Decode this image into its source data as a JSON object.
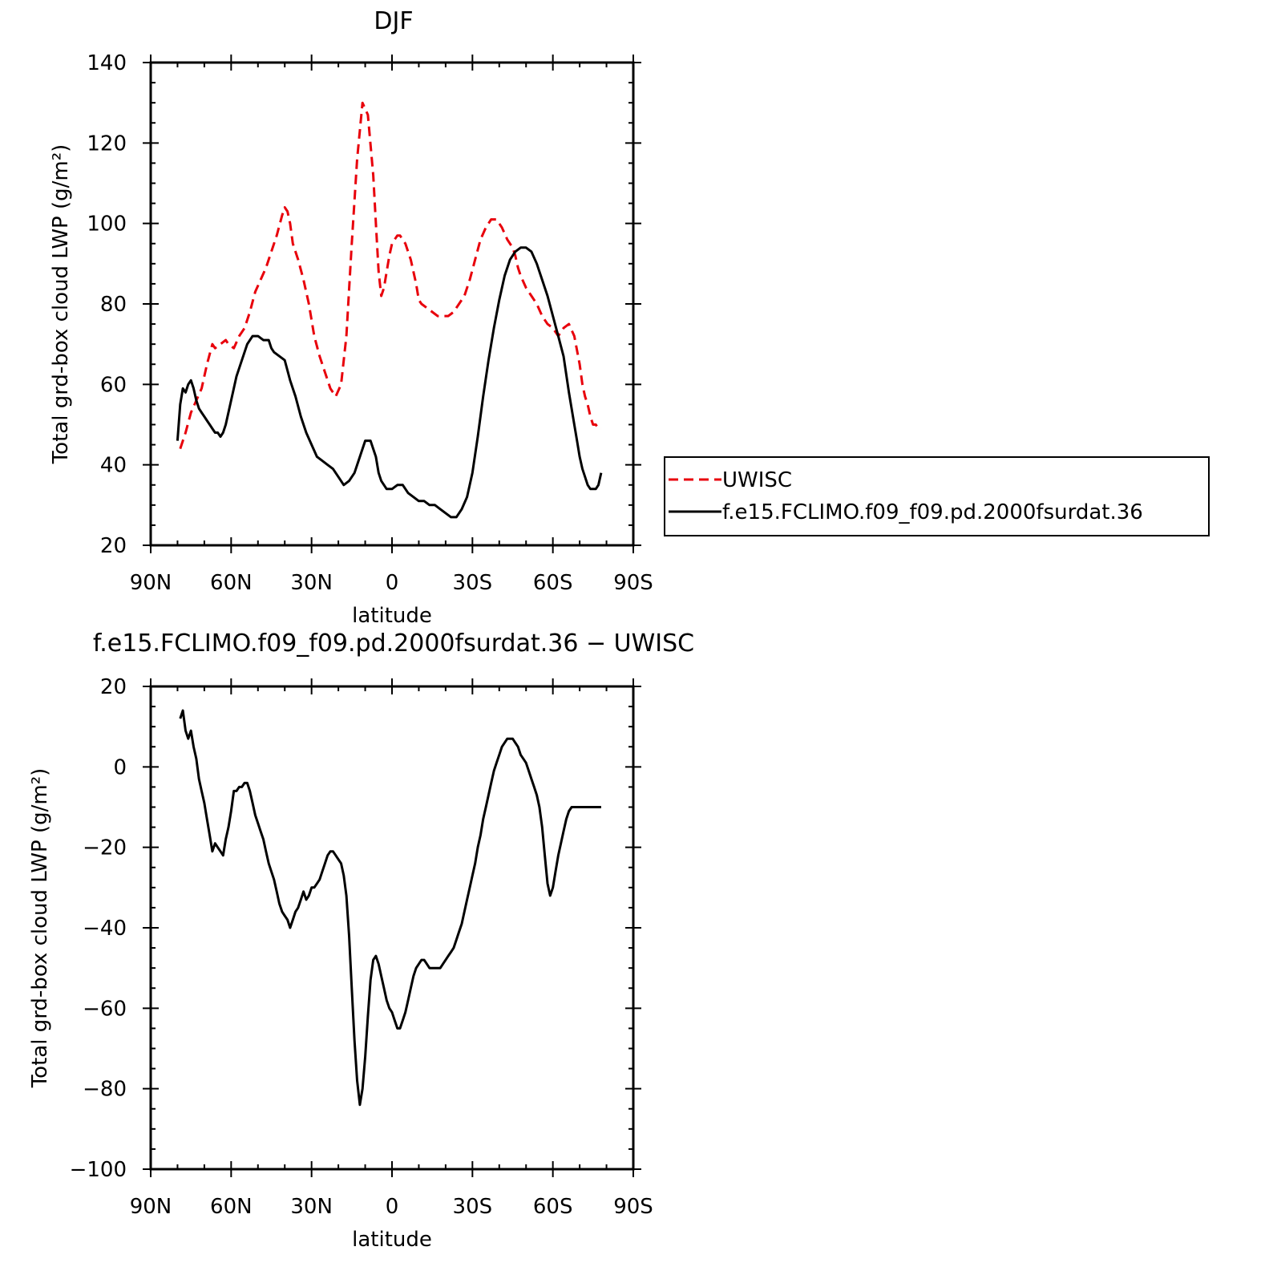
{
  "chart_data": [
    {
      "type": "line",
      "title": "DJF",
      "xlabel": "latitude",
      "ylabel": "Total grd-box cloud LWP (g/m²)",
      "xlim": [
        90,
        -90
      ],
      "ylim": [
        20,
        140
      ],
      "x_ticks": [
        90,
        60,
        30,
        0,
        -30,
        -60,
        -90
      ],
      "x_tick_labels": [
        "90N",
        "60N",
        "30N",
        "0",
        "30S",
        "60S",
        "90S"
      ],
      "y_ticks": [
        20,
        40,
        60,
        80,
        100,
        120,
        140
      ],
      "y_tick_labels": [
        "20",
        "40",
        "60",
        "80",
        "100",
        "120",
        "140"
      ],
      "legend_position": "right",
      "series": [
        {
          "name": "UWISC",
          "color": "#e8000b",
          "style": "dashed",
          "x": [
            79,
            77,
            75,
            73,
            71,
            69,
            67,
            66,
            64,
            62,
            61,
            59,
            57,
            55,
            53,
            51,
            49,
            47,
            45,
            43,
            41,
            40,
            39,
            38,
            37,
            35,
            33,
            31,
            29,
            27,
            25,
            23,
            21,
            19,
            17,
            15,
            13,
            11,
            9,
            7,
            6,
            5,
            4,
            3,
            2,
            1,
            0,
            -1,
            -2,
            -3,
            -5,
            -7,
            -9,
            -10,
            -11,
            -13,
            -15,
            -17,
            -19,
            -21,
            -23,
            -25,
            -27,
            -29,
            -31,
            -33,
            -35,
            -37,
            -39,
            -41,
            -43,
            -45,
            -46,
            -47,
            -48,
            -50,
            -52,
            -54,
            -56,
            -58,
            -60,
            -62,
            -64,
            -66,
            -68,
            -70,
            -71,
            -72,
            -73,
            -74,
            -75,
            -76,
            -77,
            -78
          ],
          "values": [
            44,
            48,
            53,
            56,
            59,
            65,
            70,
            69,
            70,
            71,
            70,
            69,
            72,
            74,
            78,
            83,
            86,
            89,
            93,
            97,
            102,
            104,
            103,
            100,
            95,
            91,
            86,
            80,
            72,
            67,
            63,
            59,
            57,
            60,
            72,
            95,
            116,
            130,
            127,
            112,
            100,
            88,
            82,
            84,
            88,
            92,
            95,
            96,
            97,
            97,
            95,
            91,
            85,
            81,
            80,
            79,
            78,
            77,
            77,
            77,
            78,
            80,
            82,
            86,
            91,
            96,
            99,
            101,
            101,
            99,
            96,
            94,
            92,
            89,
            87,
            84,
            82,
            80,
            77,
            75,
            74,
            72,
            74,
            75,
            72,
            65,
            60,
            57,
            55,
            52,
            50,
            50,
            49,
            49
          ],
          "note": ""
        },
        {
          "name": "f.e15.FCLIMO.f09_f09.pd.2000fsurdat.36",
          "color": "#000000",
          "style": "solid",
          "x": [
            80,
            79,
            78,
            77,
            76,
            75,
            74,
            73,
            72,
            71,
            70,
            69,
            68,
            67,
            66,
            65,
            64,
            63,
            62,
            60,
            58,
            56,
            54,
            52,
            50,
            48,
            46,
            45,
            44,
            42,
            40,
            38,
            36,
            34,
            32,
            30,
            28,
            26,
            24,
            22,
            20,
            18,
            16,
            14,
            12,
            10,
            8,
            6,
            5,
            4,
            2,
            0,
            -2,
            -4,
            -6,
            -8,
            -10,
            -12,
            -14,
            -16,
            -18,
            -20,
            -22,
            -24,
            -26,
            -28,
            -30,
            -32,
            -34,
            -36,
            -38,
            -40,
            -42,
            -44,
            -46,
            -48,
            -50,
            -52,
            -54,
            -56,
            -58,
            -60,
            -62,
            -64,
            -66,
            -68,
            -69,
            -70,
            -71,
            -72,
            -73,
            -74,
            -75,
            -76,
            -77,
            -78
          ],
          "values": [
            46,
            55,
            59,
            58,
            60,
            61,
            59,
            56,
            54,
            53,
            52,
            51,
            50,
            49,
            48,
            48,
            47,
            48,
            50,
            56,
            62,
            66,
            70,
            72,
            72,
            71,
            71,
            69,
            68,
            67,
            66,
            61,
            57,
            52,
            48,
            45,
            42,
            41,
            40,
            39,
            37,
            35,
            36,
            38,
            42,
            46,
            46,
            42,
            38,
            36,
            34,
            34,
            35,
            35,
            33,
            32,
            31,
            31,
            30,
            30,
            29,
            28,
            27,
            27,
            29,
            32,
            38,
            47,
            57,
            66,
            74,
            81,
            87,
            91,
            93,
            94,
            94,
            93,
            90,
            86,
            82,
            77,
            72,
            67,
            58,
            50,
            46,
            42,
            39,
            37,
            35,
            34,
            34,
            34,
            35,
            38
          ],
          "note": ""
        }
      ]
    },
    {
      "type": "line",
      "title": "f.e15.FCLIMO.f09_f09.pd.2000fsurdat.36 − UWISC",
      "xlabel": "latitude",
      "ylabel": "Total grd-box cloud LWP (g/m²)",
      "xlim": [
        90,
        -90
      ],
      "ylim": [
        -100,
        20
      ],
      "x_ticks": [
        90,
        60,
        30,
        0,
        -30,
        -60,
        -90
      ],
      "x_tick_labels": [
        "90N",
        "60N",
        "30N",
        "0",
        "30S",
        "60S",
        "90S"
      ],
      "y_ticks": [
        -100,
        -80,
        -60,
        -40,
        -20,
        0,
        20
      ],
      "y_tick_labels": [
        "−100",
        "−80",
        "−60",
        "−40",
        "−20",
        "0",
        "20"
      ],
      "series": [
        {
          "color": "#000000",
          "style": "solid",
          "x": [
            79,
            78,
            77,
            76,
            75,
            74,
            73,
            72,
            71,
            70,
            69,
            68,
            67,
            66,
            65,
            64,
            63,
            62,
            61,
            60,
            59,
            58,
            57,
            56,
            55,
            54,
            53,
            52,
            51,
            50,
            49,
            48,
            47,
            46,
            45,
            44,
            43,
            42,
            41,
            40,
            39,
            38,
            37,
            36,
            35,
            34,
            33,
            32,
            31,
            30,
            29,
            28,
            27,
            26,
            25,
            24,
            23,
            22,
            21,
            20,
            19,
            18,
            17,
            16,
            15,
            14,
            13,
            12,
            11,
            10,
            9,
            8,
            7,
            6,
            5,
            4,
            3,
            2,
            1,
            0,
            -1,
            -2,
            -3,
            -4,
            -5,
            -6,
            -7,
            -8,
            -9,
            -10,
            -11,
            -12,
            -13,
            -14,
            -15,
            -16,
            -17,
            -18,
            -19,
            -20,
            -21,
            -22,
            -23,
            -24,
            -25,
            -26,
            -27,
            -28,
            -29,
            -30,
            -31,
            -32,
            -33,
            -34,
            -35,
            -36,
            -37,
            -38,
            -39,
            -40,
            -41,
            -42,
            -43,
            -44,
            -45,
            -46,
            -47,
            -48,
            -49,
            -50,
            -51,
            -52,
            -53,
            -54,
            -55,
            -56,
            -57,
            -58,
            -59,
            -60,
            -61,
            -62,
            -63,
            -64,
            -65,
            -66,
            -67,
            -68,
            -69,
            -70,
            -71,
            -72,
            -73,
            -74,
            -75,
            -76,
            -77,
            -78
          ],
          "values": [
            12,
            14,
            9,
            7,
            9,
            5,
            2,
            -3,
            -6,
            -9,
            -13,
            -17,
            -21,
            -19,
            -20,
            -21,
            -22,
            -18,
            -15,
            -11,
            -6,
            -6,
            -5,
            -5,
            -4,
            -4,
            -6,
            -9,
            -12,
            -14,
            -16,
            -18,
            -21,
            -24,
            -26,
            -28,
            -31,
            -34,
            -36,
            -37,
            -38,
            -40,
            -38,
            -36,
            -35,
            -33,
            -31,
            -33,
            -32,
            -30,
            -30,
            -29,
            -28,
            -26,
            -24,
            -22,
            -21,
            -21,
            -22,
            -23,
            -24,
            -27,
            -32,
            -42,
            -55,
            -68,
            -78,
            -84,
            -80,
            -72,
            -62,
            -53,
            -48,
            -47,
            -49,
            -52,
            -55,
            -58,
            -60,
            -61,
            -63,
            -65,
            -65,
            -63,
            -61,
            -58,
            -55,
            -52,
            -50,
            -49,
            -48,
            -48,
            -49,
            -50,
            -50,
            -50,
            -50,
            -50,
            -49,
            -48,
            -47,
            -46,
            -45,
            -43,
            -41,
            -39,
            -36,
            -33,
            -30,
            -27,
            -24,
            -20,
            -17,
            -13,
            -10,
            -7,
            -4,
            -1,
            1,
            3,
            5,
            6,
            7,
            7,
            7,
            6,
            5,
            3,
            2,
            1,
            -1,
            -3,
            -5,
            -7,
            -10,
            -15,
            -22,
            -29,
            -32,
            -30,
            -26,
            -22,
            -19,
            -16,
            -13,
            -11,
            -10,
            -10,
            -10,
            -10,
            -10,
            -10,
            -10,
            -10,
            -10,
            -10,
            -10,
            -10
          ],
          "note": ""
        }
      ]
    }
  ]
}
